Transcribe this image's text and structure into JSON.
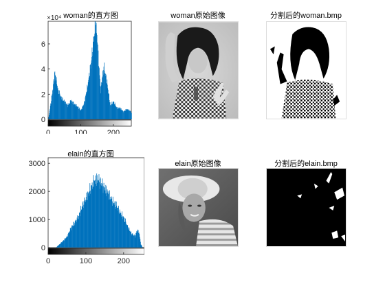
{
  "figure": {
    "panels": {
      "hist_woman_title": "woman的直方图",
      "img_woman_title": "woman原始图像",
      "seg_woman_title": "分割后的woman.bmp",
      "hist_elain_title": "elain的直方图",
      "img_elain_title": "elain原始图像",
      "seg_elain_title": "分割后的elain.bmp"
    }
  },
  "colors": {
    "bar": "#0072bd",
    "axis": "#262626"
  },
  "chart_data": [
    {
      "type": "bar",
      "title": "woman的直方图",
      "xlabel": "",
      "ylabel": "",
      "exponent_label": "×10⁴",
      "xlim": [
        0,
        255
      ],
      "ylim": [
        0,
        7.8
      ],
      "xticks": [
        "0",
        "100",
        "200"
      ],
      "yticks": [
        "0",
        "2",
        "4",
        "6"
      ],
      "grayscale_colorbar": true,
      "series": [
        {
          "x": [
            0,
            10,
            20,
            30,
            40,
            50,
            60,
            70,
            80,
            90,
            100,
            110,
            120,
            130,
            140,
            145,
            150,
            160,
            170,
            180,
            190,
            200,
            210,
            220,
            230,
            240,
            250,
            255
          ],
          "values": [
            0,
            1.7,
            3.7,
            2.3,
            1.7,
            1.4,
            1.1,
            1.5,
            1.2,
            1.0,
            0.7,
            1.3,
            2.6,
            4.3,
            6.6,
            7.8,
            6.3,
            2.3,
            4.2,
            2.9,
            1.1,
            1.4,
            0.9,
            0.9,
            0.6,
            0.8,
            0.7,
            0.5
          ]
        }
      ]
    },
    {
      "type": "bar",
      "title": "elain的直方图",
      "xlabel": "",
      "ylabel": "",
      "xlim": [
        0,
        255
      ],
      "ylim": [
        0,
        3200
      ],
      "xticks": [
        "0",
        "100",
        "200"
      ],
      "yticks": [
        "0",
        "1000",
        "2000",
        "3000"
      ],
      "grayscale_colorbar": true,
      "series": [
        {
          "x": [
            0,
            20,
            30,
            40,
            50,
            60,
            70,
            80,
            90,
            100,
            110,
            120,
            130,
            140,
            150,
            160,
            170,
            180,
            190,
            200,
            210,
            220,
            230,
            235,
            240,
            245,
            250,
            255
          ],
          "values": [
            0,
            0,
            120,
            250,
            400,
            700,
            900,
            1100,
            1500,
            1750,
            2050,
            2350,
            2450,
            2300,
            2100,
            1900,
            1650,
            1500,
            1250,
            1050,
            750,
            500,
            400,
            620,
            550,
            120,
            0,
            0
          ]
        }
      ]
    }
  ]
}
